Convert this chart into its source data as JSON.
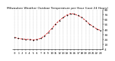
{
  "title": "Milwaukee Weather Outdoor Temperature per Hour (Last 24 Hours)",
  "hours": [
    0,
    1,
    2,
    3,
    4,
    5,
    6,
    7,
    8,
    9,
    10,
    11,
    12,
    13,
    14,
    15,
    16,
    17,
    18,
    19,
    20,
    21,
    22,
    23
  ],
  "temps": [
    28,
    26,
    25,
    24,
    24,
    23,
    24,
    26,
    31,
    38,
    46,
    55,
    62,
    68,
    73,
    76,
    75,
    72,
    68,
    62,
    55,
    50,
    45,
    42
  ],
  "line_color": "#cc0000",
  "marker_color": "#000000",
  "bg_color": "#ffffff",
  "grid_color": "#bbbbbb",
  "ylim_min": 4,
  "ylim_max": 84,
  "yticks": [
    4,
    14,
    24,
    34,
    44,
    54,
    64,
    74,
    84
  ],
  "title_fontsize": 3.2,
  "tick_fontsize": 2.8,
  "linewidth": 0.6,
  "markersize": 1.8
}
